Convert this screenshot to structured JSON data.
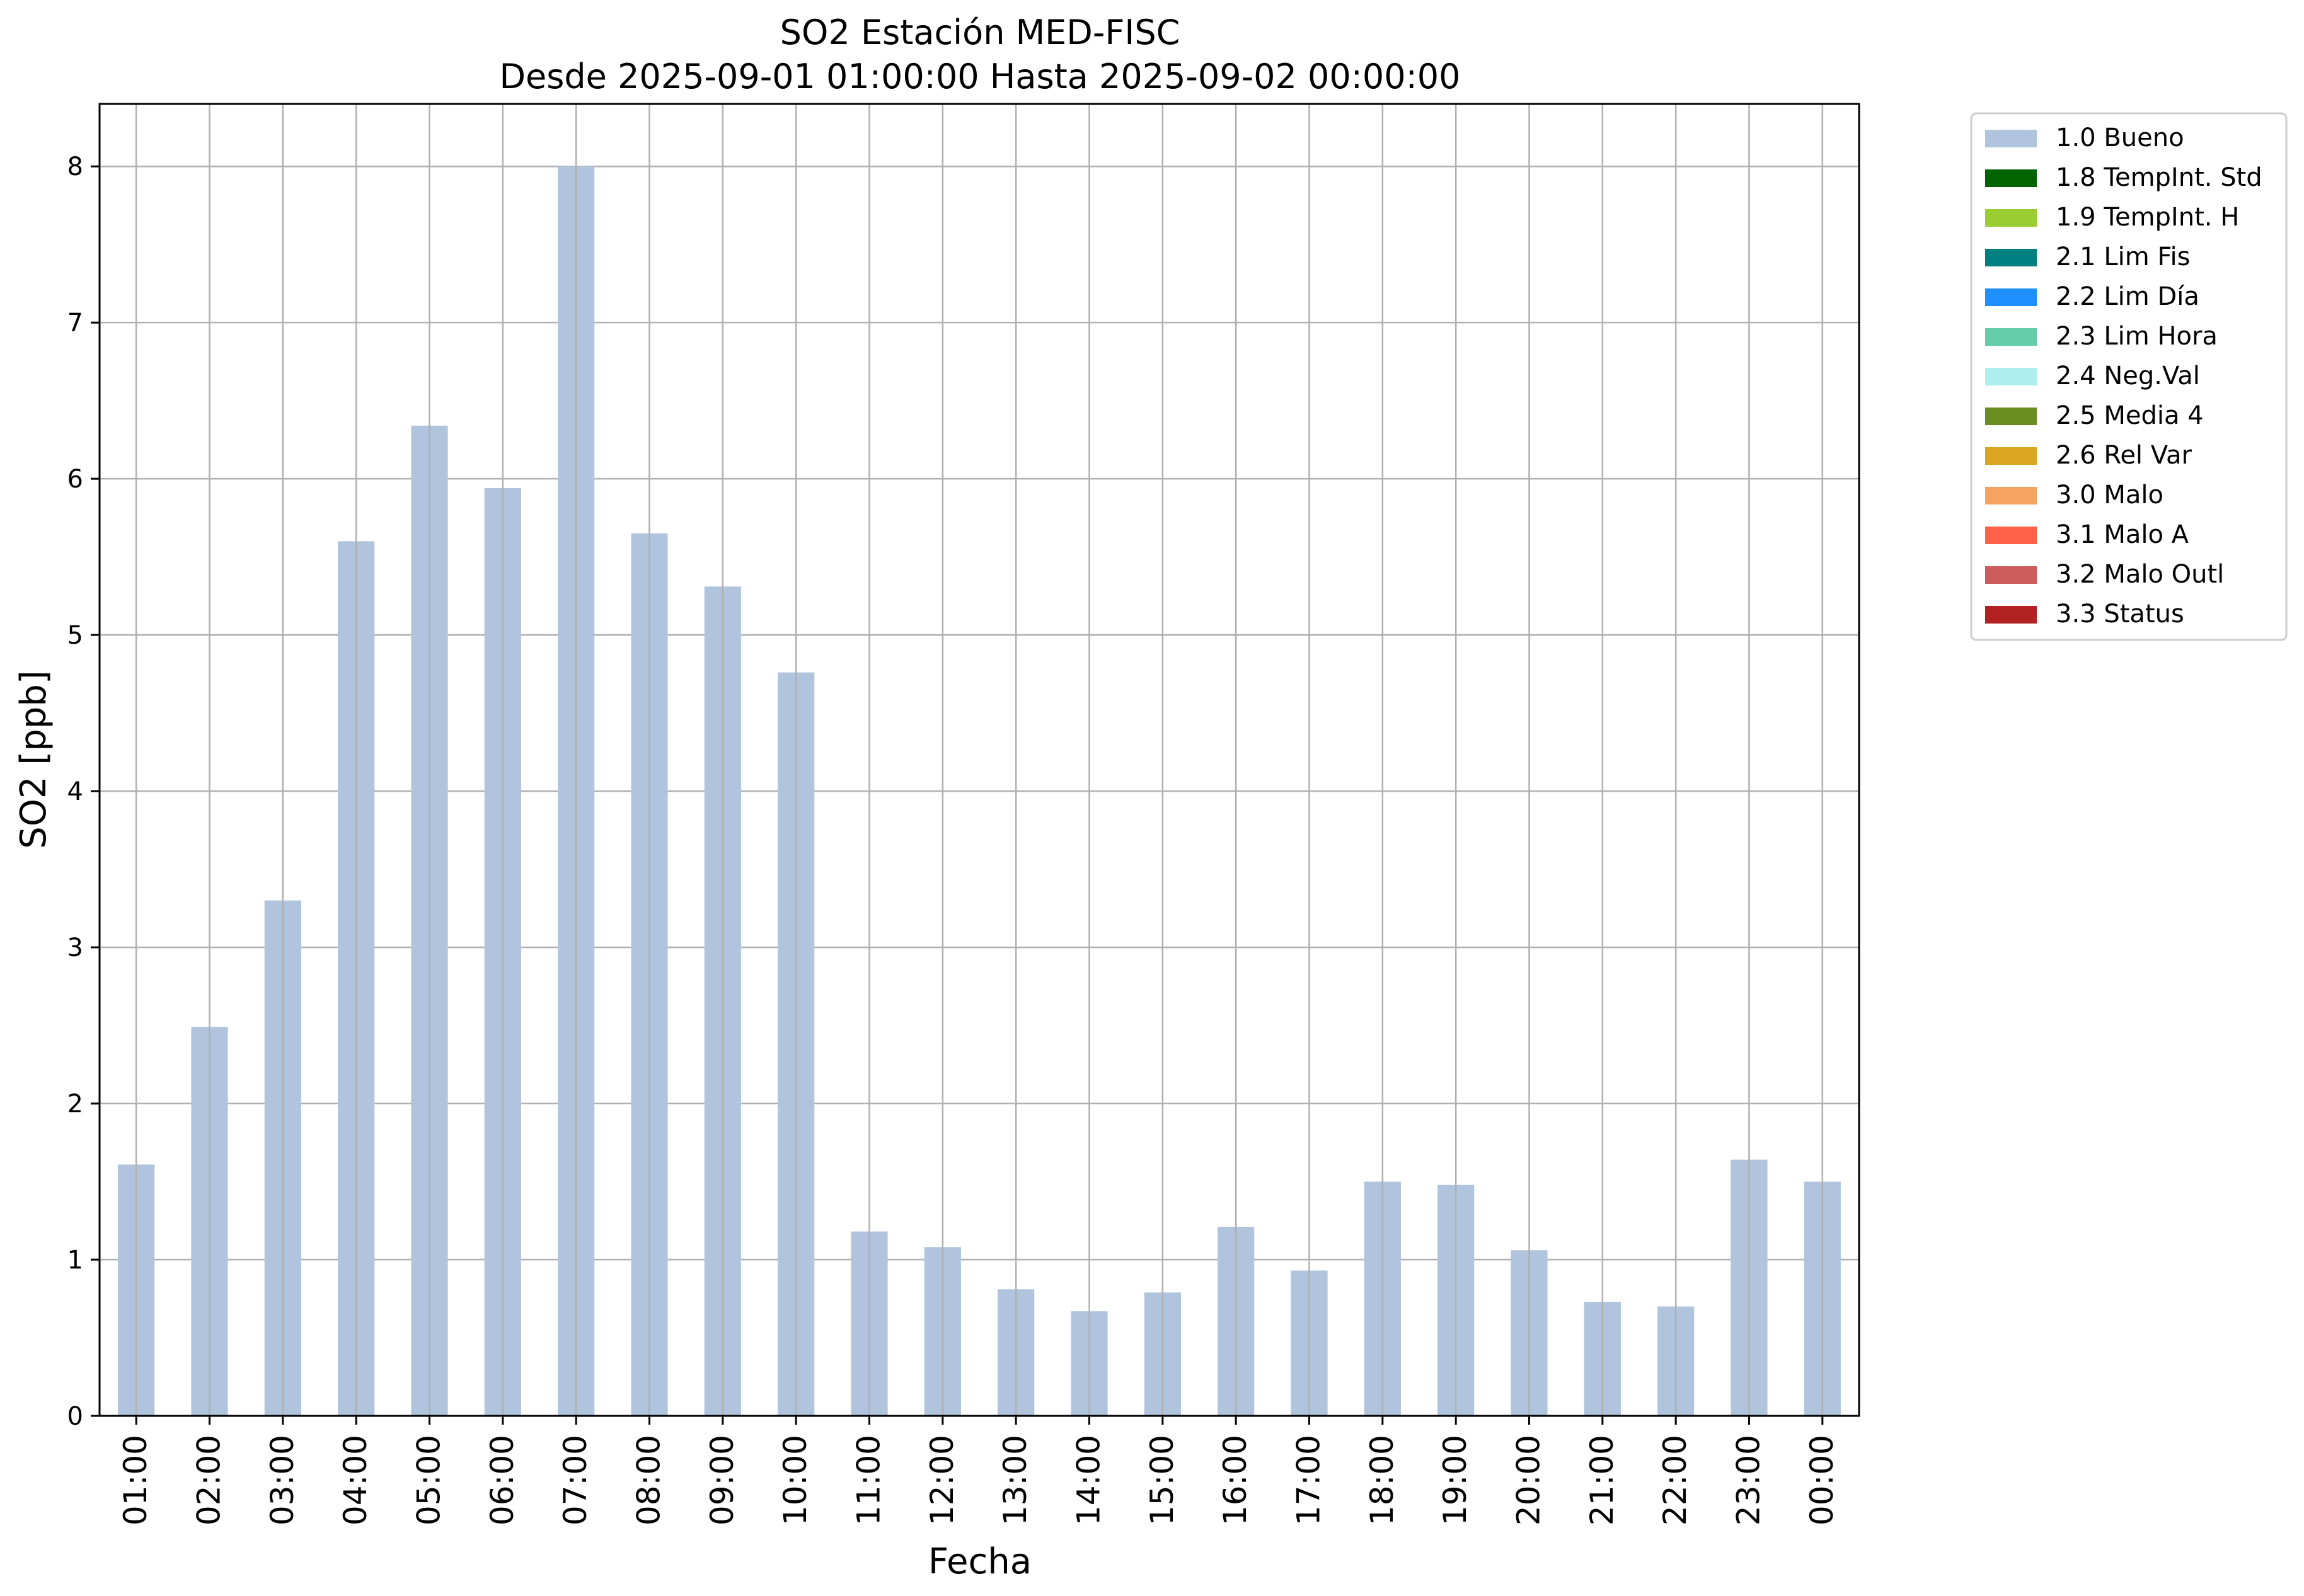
{
  "chart_data": {
    "type": "bar",
    "title_line1": "SO2 Estación MED-FISC",
    "title_line2": "Desde 2025-09-01 01:00:00 Hasta 2025-09-02 00:00:00",
    "xlabel": "Fecha",
    "ylabel": "SO2 [ppb]",
    "ylim": [
      0,
      8.4
    ],
    "yticks": [
      0,
      1,
      2,
      3,
      4,
      5,
      6,
      7,
      8
    ],
    "grid": true,
    "legend_position": "outside-right-top",
    "categories": [
      "01:00",
      "02:00",
      "03:00",
      "04:00",
      "05:00",
      "06:00",
      "07:00",
      "08:00",
      "09:00",
      "10:00",
      "11:00",
      "12:00",
      "13:00",
      "14:00",
      "15:00",
      "16:00",
      "17:00",
      "18:00",
      "19:00",
      "20:00",
      "21:00",
      "22:00",
      "23:00",
      "00:00"
    ],
    "series": [
      {
        "name": "1.0 Bueno",
        "color": "#b0c4de",
        "values": [
          1.61,
          2.49,
          3.3,
          5.6,
          6.34,
          5.94,
          8.0,
          5.65,
          5.31,
          4.76,
          1.18,
          1.08,
          0.81,
          0.67,
          0.79,
          1.21,
          0.93,
          1.5,
          1.48,
          1.06,
          0.73,
          0.7,
          1.64,
          1.5
        ]
      }
    ],
    "legend": [
      {
        "label": "1.0 Bueno",
        "color": "#b0c4de"
      },
      {
        "label": "1.8 TempInt. Std",
        "color": "#006400"
      },
      {
        "label": "1.9 TempInt. H",
        "color": "#9acd32"
      },
      {
        "label": "2.1 Lim Fis",
        "color": "#008080"
      },
      {
        "label": "2.2 Lim Día",
        "color": "#1e90ff"
      },
      {
        "label": "2.3 Lim Hora",
        "color": "#66cdaa"
      },
      {
        "label": "2.4 Neg.Val",
        "color": "#afeeee"
      },
      {
        "label": "2.5 Media 4",
        "color": "#6b8e23"
      },
      {
        "label": "2.6 Rel Var",
        "color": "#daa520"
      },
      {
        "label": "3.0 Malo",
        "color": "#f4a460"
      },
      {
        "label": "3.1 Malo A",
        "color": "#ff6347"
      },
      {
        "label": "3.2 Malo Outl",
        "color": "#cd5c5c"
      },
      {
        "label": "3.3 Status",
        "color": "#b22222"
      }
    ]
  }
}
